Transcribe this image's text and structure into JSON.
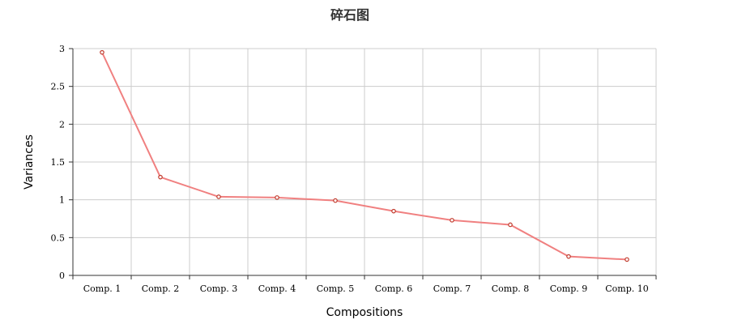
{
  "chart_data": {
    "type": "line",
    "title": "碎石图",
    "xlabel": "Compositions",
    "ylabel": "Variances",
    "categories": [
      "Comp. 1",
      "Comp. 2",
      "Comp. 3",
      "Comp. 4",
      "Comp. 5",
      "Comp. 6",
      "Comp. 7",
      "Comp. 8",
      "Comp. 9",
      "Comp. 10"
    ],
    "series": [
      {
        "values": [
          2.95,
          1.3,
          1.04,
          1.03,
          0.99,
          0.85,
          0.73,
          0.67,
          0.25,
          0.21
        ]
      }
    ],
    "ylim": [
      0,
      3
    ],
    "yticks": [
      "0",
      "0.5",
      "1",
      "1.5",
      "2",
      "2.5",
      "3"
    ],
    "grid": true,
    "colors": {
      "line": "#f08080",
      "marker_stroke": "#c0392b"
    }
  }
}
